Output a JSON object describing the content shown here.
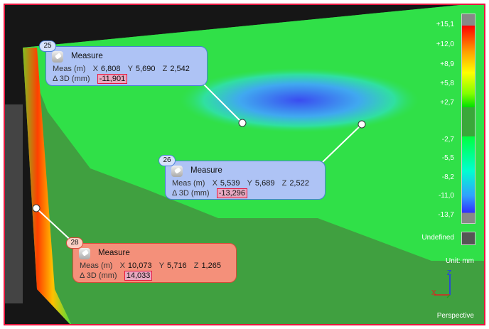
{
  "callouts": [
    {
      "id": "25",
      "title": "Measure",
      "meas_label": "Meas (m)",
      "x_label": "X",
      "x": "6,808",
      "y_label": "Y",
      "y": "5,690",
      "z_label": "Z",
      "z": "2,542",
      "delta_label": "Δ 3D (mm)",
      "delta": "-11,901",
      "color": "#aec3f5"
    },
    {
      "id": "26",
      "title": "Measure",
      "meas_label": "Meas (m)",
      "x_label": "X",
      "x": "5,539",
      "y_label": "Y",
      "y": "5,689",
      "z_label": "Z",
      "z": "2,522",
      "delta_label": "Δ 3D (mm)",
      "delta": "-13,296",
      "color": "#aec3f5"
    },
    {
      "id": "28",
      "title": "Measure",
      "meas_label": "Meas (m)",
      "x_label": "X",
      "x": "10,073",
      "y_label": "Y",
      "y": "5,716",
      "z_label": "Z",
      "z": "1,265",
      "delta_label": "Δ 3D (mm)",
      "delta": "14,033",
      "color": "#f4907a"
    }
  ],
  "colorbar": {
    "labels": [
      "+15,1",
      "+12,0",
      "+8,9",
      "+5,8",
      "+2,7",
      "-2,7",
      "-5,5",
      "-8,2",
      "-11,0",
      "-13,7"
    ],
    "undefined_label": "Undefined",
    "unit": "Unit: mm",
    "colors": [
      "#ff0000",
      "#ffa000",
      "#ffff00",
      "#90ff00",
      "#00e000",
      "#3aa83a",
      "#00ff40",
      "#00ffd0",
      "#30a0ff",
      "#3030ff"
    ]
  },
  "axes": {
    "x": "X",
    "z": "Z"
  },
  "view_mode": "Perspective"
}
